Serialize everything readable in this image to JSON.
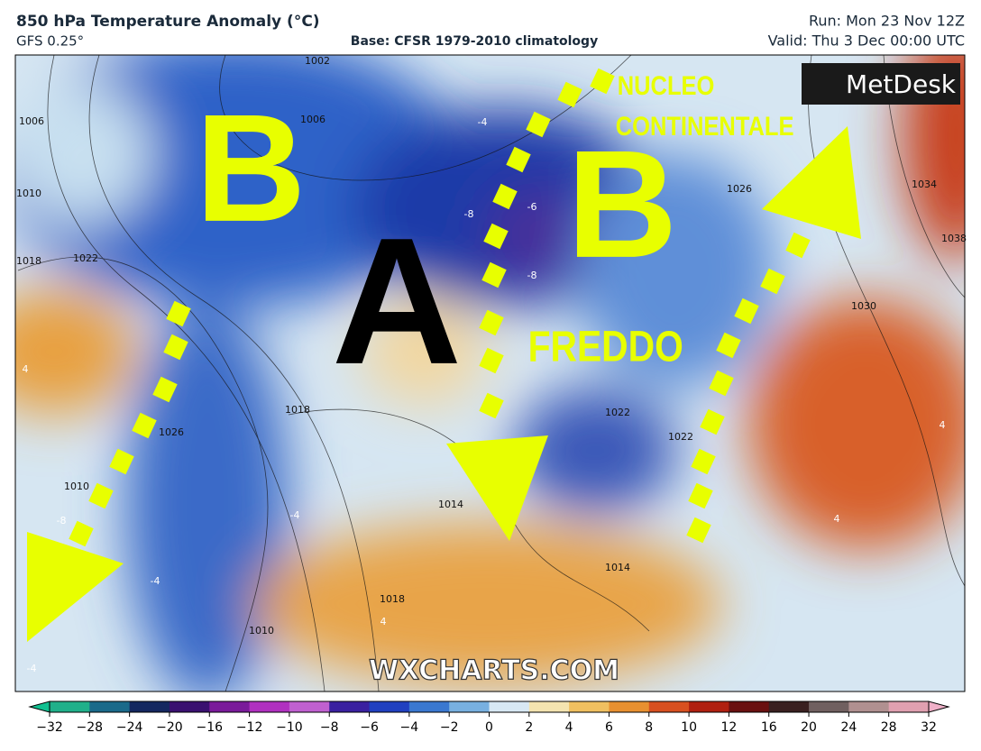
{
  "header": {
    "title": "850 hPa Temperature Anomaly (°C)",
    "model": "GFS 0.25°",
    "base": "Base: CFSR 1979-2010 climatology",
    "run": "Run: Mon 23 Nov 12Z",
    "valid": "Valid: Thu 3 Dec 00:00 UTC"
  },
  "map": {
    "logo": "MetDesk",
    "watermark": "WXCHARTS.COM",
    "annotations": [
      "B",
      "A",
      "B",
      "NUCLEO",
      "CONTINENTALE",
      "FREDDO"
    ],
    "isobar_labels": [
      "1002",
      "1006",
      "1006",
      "1010",
      "1018",
      "1022",
      "1026",
      "1018",
      "1014",
      "1010",
      "1010",
      "1014",
      "1018",
      "1022",
      "1022",
      "1026",
      "1030",
      "1034",
      "1038"
    ],
    "anomaly_labels": [
      "-4",
      "-8",
      "-6",
      "-8",
      "-4",
      "-8",
      "-4",
      "-4",
      "4",
      "4",
      "4",
      "4"
    ]
  },
  "colorbar": {
    "ticks": [
      {
        "value": -32,
        "label": "−32"
      },
      {
        "value": -28,
        "label": "−28"
      },
      {
        "value": -24,
        "label": "−24"
      },
      {
        "value": -20,
        "label": "−20"
      },
      {
        "value": -16,
        "label": "−16"
      },
      {
        "value": -12,
        "label": "−12"
      },
      {
        "value": -10,
        "label": "−10"
      },
      {
        "value": -8,
        "label": "−8"
      },
      {
        "value": -6,
        "label": "−6"
      },
      {
        "value": -4,
        "label": "−4"
      },
      {
        "value": -2,
        "label": "−2"
      },
      0,
      2,
      4,
      6,
      8,
      10,
      12,
      16,
      20,
      24,
      28,
      32
    ]
  }
}
